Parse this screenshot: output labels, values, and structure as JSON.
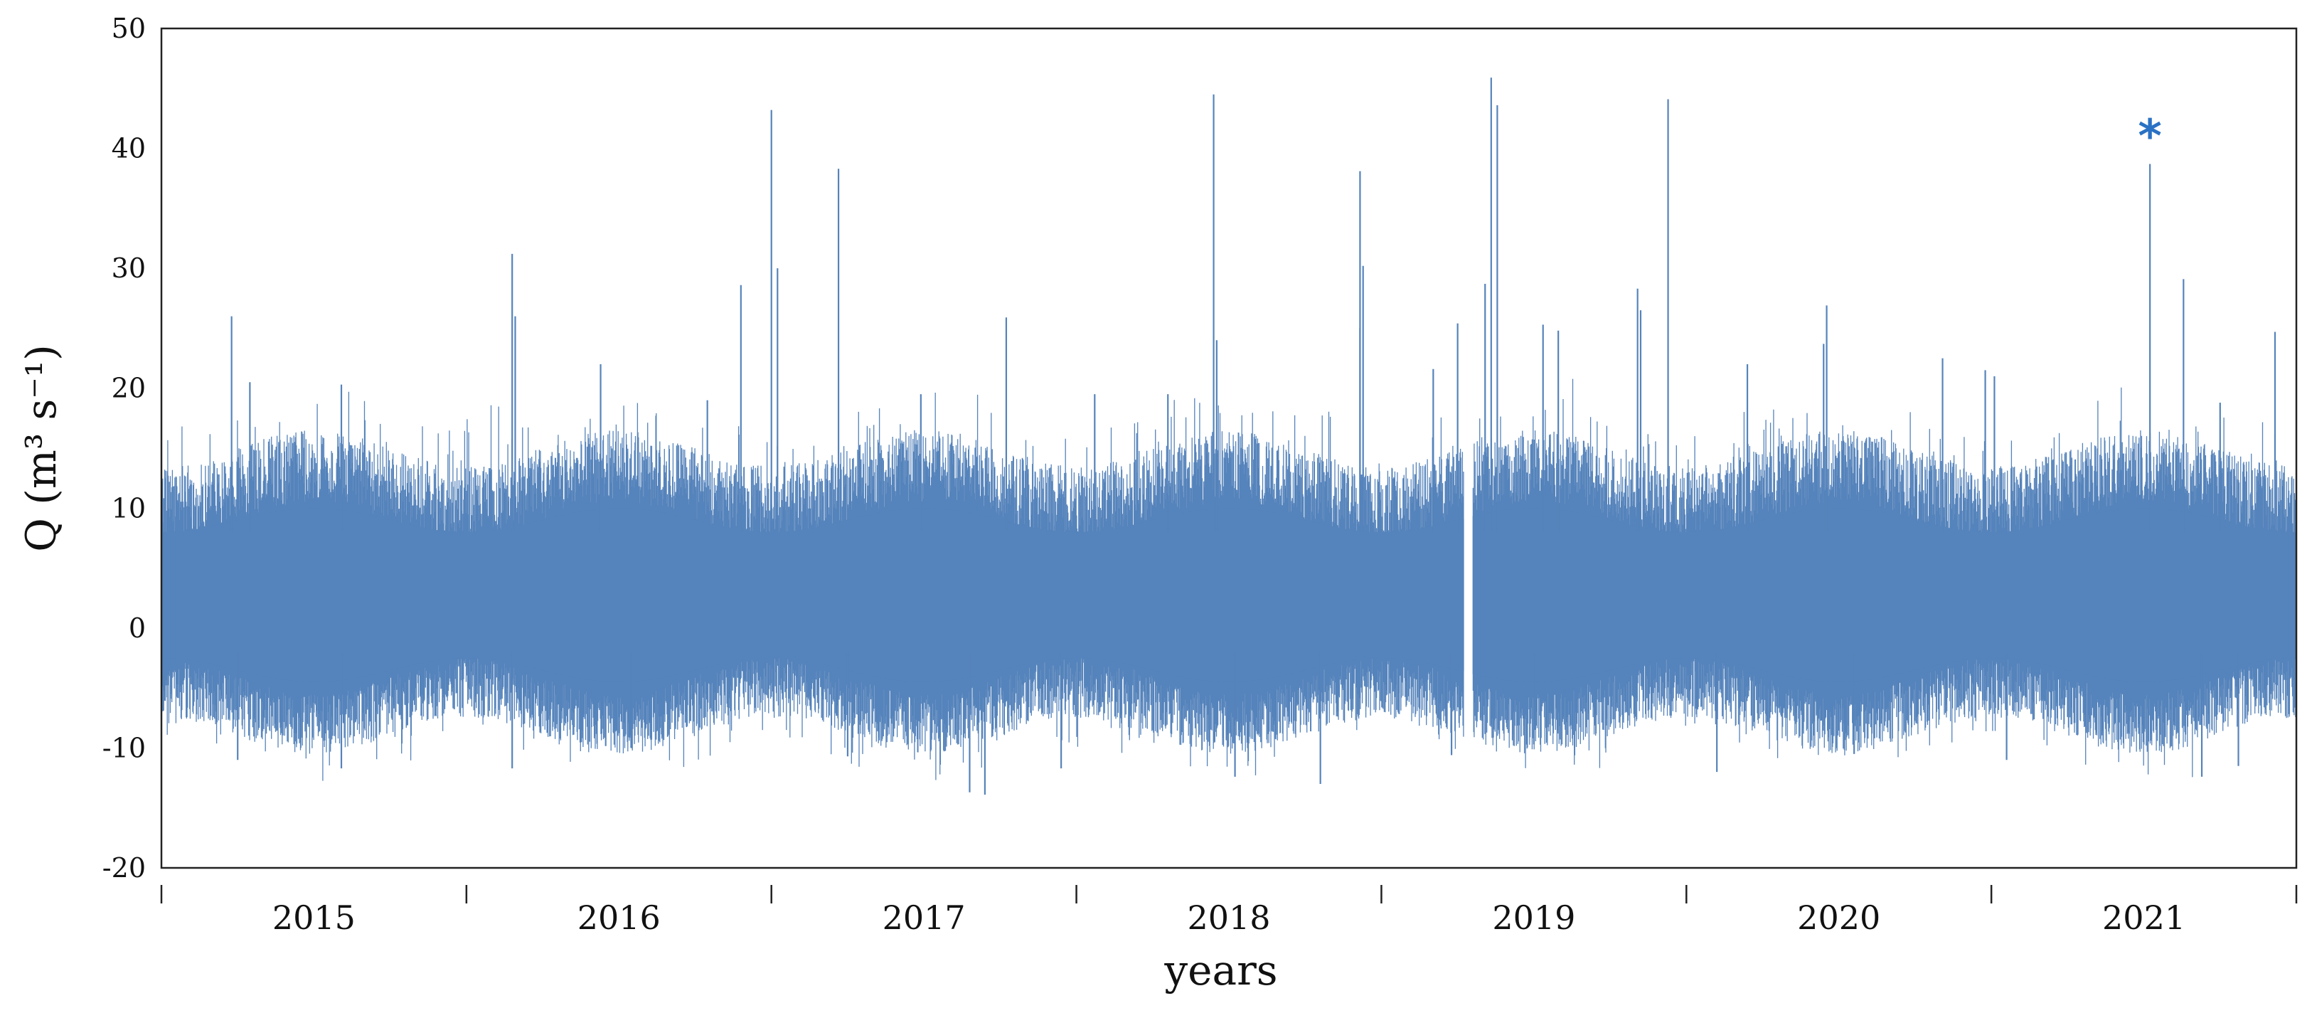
{
  "chart_data": {
    "type": "line",
    "title": "",
    "xlabel": "years",
    "ylabel": "Q (m³ s⁻¹)",
    "ylim": [
      -20,
      50
    ],
    "yticks": [
      "-20",
      "-10",
      "0",
      "10",
      "20",
      "30",
      "40",
      "50"
    ],
    "xlim": [
      2014.75,
      2021.75
    ],
    "xticks": [
      "2015",
      "2016",
      "2017",
      "2018",
      "2019",
      "2020",
      "2021"
    ],
    "grid": false,
    "legend": "none",
    "series_color": "#5583bb",
    "annotation": {
      "text": "*",
      "color": "#2a72c4",
      "x": 2021.27,
      "y": 41
    },
    "gap": [
      2019.02,
      2019.05
    ],
    "typical_envelope": {
      "upper": [
        9,
        15
      ],
      "lower": [
        -9,
        -4
      ]
    },
    "peaks": [
      {
        "x": 2014.98,
        "y": 26
      },
      {
        "x": 2015.04,
        "y": 20.5
      },
      {
        "x": 2015.34,
        "y": 20.3
      },
      {
        "x": 2015.9,
        "y": 31.2
      },
      {
        "x": 2015.91,
        "y": 26
      },
      {
        "x": 2016.19,
        "y": 22
      },
      {
        "x": 2016.54,
        "y": 19
      },
      {
        "x": 2016.65,
        "y": 28.6
      },
      {
        "x": 2016.75,
        "y": 43.2
      },
      {
        "x": 2016.77,
        "y": 30
      },
      {
        "x": 2016.97,
        "y": 38.3
      },
      {
        "x": 2017.24,
        "y": 19.5
      },
      {
        "x": 2017.52,
        "y": 25.9
      },
      {
        "x": 2017.81,
        "y": 19.5
      },
      {
        "x": 2018.05,
        "y": 19.5
      },
      {
        "x": 2018.2,
        "y": 44.5
      },
      {
        "x": 2018.21,
        "y": 24
      },
      {
        "x": 2018.68,
        "y": 38.1
      },
      {
        "x": 2018.69,
        "y": 30.2
      },
      {
        "x": 2018.68,
        "y": 25
      },
      {
        "x": 2018.92,
        "y": 21.6
      },
      {
        "x": 2019.0,
        "y": 25.4
      },
      {
        "x": 2019.09,
        "y": 28.7
      },
      {
        "x": 2019.11,
        "y": 45.9
      },
      {
        "x": 2019.13,
        "y": 43.6
      },
      {
        "x": 2019.28,
        "y": 25.3
      },
      {
        "x": 2019.33,
        "y": 24.8
      },
      {
        "x": 2019.59,
        "y": 28.3
      },
      {
        "x": 2019.6,
        "y": 26.5
      },
      {
        "x": 2019.69,
        "y": 44.1
      },
      {
        "x": 2019.95,
        "y": 22
      },
      {
        "x": 2020.2,
        "y": 23.7
      },
      {
        "x": 2020.21,
        "y": 26.9
      },
      {
        "x": 2020.59,
        "y": 22.5
      },
      {
        "x": 2020.73,
        "y": 21.5
      },
      {
        "x": 2020.76,
        "y": 21
      },
      {
        "x": 2021.27,
        "y": 38.7
      },
      {
        "x": 2021.38,
        "y": 29.1
      },
      {
        "x": 2021.5,
        "y": 18.8
      },
      {
        "x": 2021.68,
        "y": 24.7
      }
    ],
    "troughs": [
      {
        "x": 2015.0,
        "y": -11
      },
      {
        "x": 2015.34,
        "y": -11.7
      },
      {
        "x": 2015.9,
        "y": -11.7
      },
      {
        "x": 2016.29,
        "y": -10
      },
      {
        "x": 2017.0,
        "y": -10.7
      },
      {
        "x": 2017.4,
        "y": -13.7
      },
      {
        "x": 2017.45,
        "y": -13.9
      },
      {
        "x": 2017.7,
        "y": -11.7
      },
      {
        "x": 2018.27,
        "y": -12.4
      },
      {
        "x": 2018.55,
        "y": -13
      },
      {
        "x": 2018.98,
        "y": -10.6
      },
      {
        "x": 2019.25,
        "y": -9.7
      },
      {
        "x": 2019.85,
        "y": -12
      },
      {
        "x": 2020.3,
        "y": -10.5
      },
      {
        "x": 2020.8,
        "y": -11
      },
      {
        "x": 2021.44,
        "y": -12.4
      },
      {
        "x": 2021.56,
        "y": -11.5
      }
    ]
  }
}
